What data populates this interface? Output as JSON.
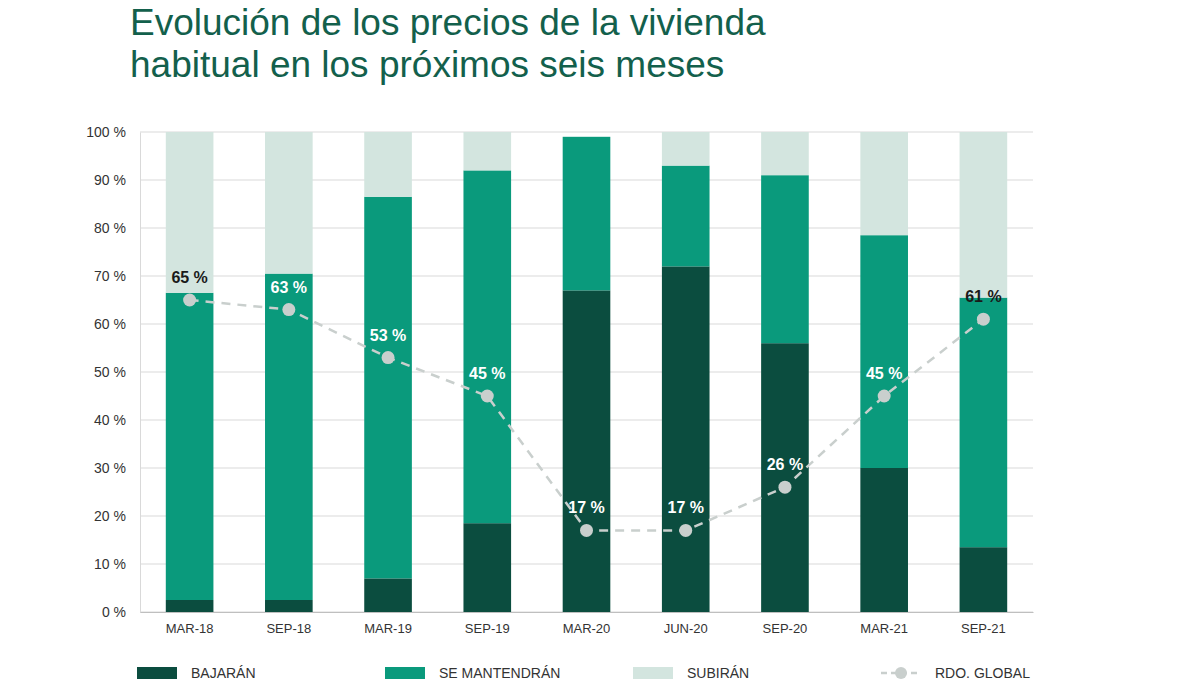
{
  "chart_data": {
    "type": "bar",
    "title": "Evolución de los precios de la vivienda habitual en los próximos seis meses",
    "categories": [
      "MAR-18",
      "SEP-18",
      "MAR-19",
      "SEP-19",
      "MAR-20",
      "JUN-20",
      "SEP-20",
      "MAR-21",
      "SEP-21"
    ],
    "stacked": true,
    "grid": true,
    "legend": "bottom",
    "ylim": [
      0,
      100
    ],
    "yticks": [
      {
        "value": 0,
        "label": "0 %"
      },
      {
        "value": 10,
        "label": "10 %"
      },
      {
        "value": 20,
        "label": "20 %"
      },
      {
        "value": 30,
        "label": "30 %"
      },
      {
        "value": 40,
        "label": "40 %"
      },
      {
        "value": 50,
        "label": "50 %"
      },
      {
        "value": 60,
        "label": "60 %"
      },
      {
        "value": 70,
        "label": "70 %"
      },
      {
        "value": 80,
        "label": "80 %"
      },
      {
        "value": 90,
        "label": "90 %"
      },
      {
        "value": 100,
        "label": "100 %"
      }
    ],
    "series": [
      {
        "name": "BAJARÁN",
        "color": "#0b4d3f",
        "values": [
          2.5,
          2.5,
          7,
          18.5,
          67,
          72,
          56,
          30,
          13.5
        ]
      },
      {
        "name": "SE MANTENDRÁN",
        "color": "#0a9a7c",
        "values": [
          64,
          68,
          79.5,
          73.5,
          32,
          21,
          35,
          48.5,
          52
        ]
      },
      {
        "name": "SUBIRÁN",
        "color": "#d3e5df",
        "values": [
          33.5,
          29.5,
          13.5,
          8,
          0,
          7,
          9,
          21.5,
          34.5
        ]
      },
      {
        "name": "RDO. GLOBAL",
        "type": "line",
        "color": "#c9cfcd",
        "line_style": "dashed",
        "marker": "circle",
        "data_labels": true,
        "values": [
          65,
          63,
          53,
          45,
          17,
          17,
          26,
          45,
          61
        ],
        "value_labels": [
          "65 %",
          "63 %",
          "53 %",
          "45 %",
          "17 %",
          "17 %",
          "26 %",
          "45 %",
          "61 %"
        ]
      }
    ]
  }
}
